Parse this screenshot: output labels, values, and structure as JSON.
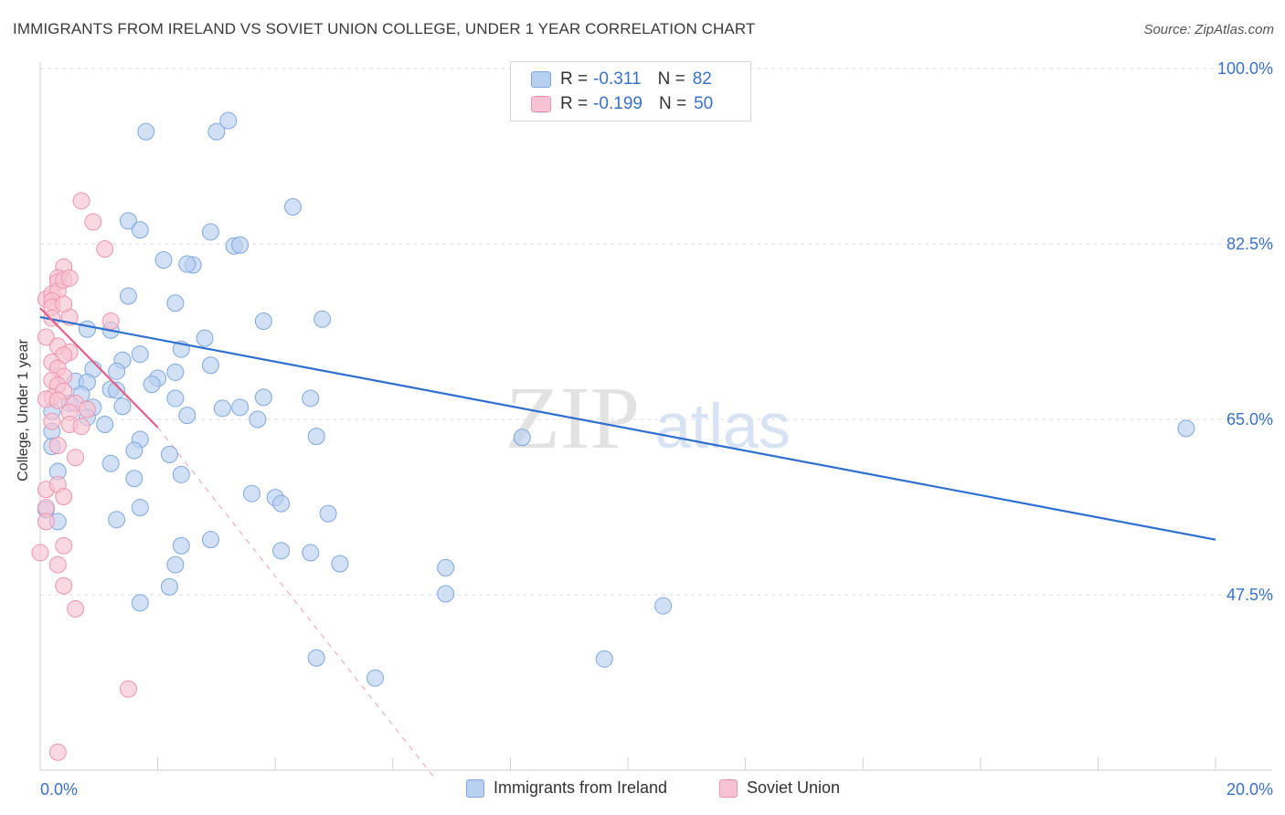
{
  "title": "IMMIGRANTS FROM IRELAND VS SOVIET UNION COLLEGE, UNDER 1 YEAR CORRELATION CHART",
  "source": "Source: ZipAtlas.com",
  "watermark": {
    "zip": "ZIP",
    "atlas": "atlas"
  },
  "legend": {
    "rows": [
      {
        "r_label": "R =",
        "r_value": "-0.311",
        "n_label": "N =",
        "n_value": "82"
      },
      {
        "r_label": "R =",
        "r_value": "-0.199",
        "n_label": "N =",
        "n_value": "50"
      }
    ]
  },
  "bottom_legend": {
    "ireland": "Immigrants from Ireland",
    "soviet": "Soviet Union"
  },
  "colors": {
    "blue_fill": "#b8d0f0",
    "blue_stroke": "#7fa8dc",
    "blue_line": "#2f6fd0",
    "pink_fill": "#f7c3d3",
    "pink_stroke": "#ec95b0",
    "pink_line": "#e0608a",
    "axis_label": "#3a72c8",
    "grid": "#dddddd"
  },
  "chart_data": {
    "type": "scatter",
    "title": "IMMIGRANTS FROM IRELAND VS SOVIET UNION COLLEGE, UNDER 1 YEAR CORRELATION CHART",
    "xlabel": "",
    "ylabel": "College, Under 1 year",
    "xlim": [
      0,
      20
    ],
    "ylim": [
      30,
      100
    ],
    "x_tick_labels": [
      "0.0%",
      "20.0%"
    ],
    "y_ticks": [
      47.5,
      65.0,
      82.5,
      100.0
    ],
    "y_tick_labels": [
      "47.5%",
      "65.0%",
      "82.5%",
      "100.0%"
    ],
    "grid": true,
    "series": [
      {
        "name": "Immigrants from Ireland",
        "color": "#b8d0f0",
        "points": [
          [
            1.8,
            93.7
          ],
          [
            3.2,
            94.8
          ],
          [
            3.0,
            93.7
          ],
          [
            4.3,
            86.2
          ],
          [
            1.5,
            84.8
          ],
          [
            1.7,
            83.9
          ],
          [
            2.9,
            83.7
          ],
          [
            3.3,
            82.3
          ],
          [
            3.4,
            82.4
          ],
          [
            2.1,
            80.9
          ],
          [
            2.6,
            80.4
          ],
          [
            2.5,
            80.5
          ],
          [
            1.5,
            77.3
          ],
          [
            2.3,
            76.6
          ],
          [
            4.8,
            75.0
          ],
          [
            3.8,
            74.8
          ],
          [
            0.8,
            74.0
          ],
          [
            1.2,
            73.9
          ],
          [
            2.8,
            73.1
          ],
          [
            2.4,
            72.0
          ],
          [
            1.7,
            71.5
          ],
          [
            1.4,
            70.9
          ],
          [
            2.9,
            70.4
          ],
          [
            2.3,
            69.7
          ],
          [
            0.9,
            70.0
          ],
          [
            1.3,
            69.8
          ],
          [
            2.0,
            69.1
          ],
          [
            1.9,
            68.5
          ],
          [
            0.6,
            68.8
          ],
          [
            0.8,
            68.7
          ],
          [
            1.2,
            68.0
          ],
          [
            0.7,
            67.5
          ],
          [
            1.3,
            67.9
          ],
          [
            2.3,
            67.1
          ],
          [
            3.8,
            67.2
          ],
          [
            4.6,
            67.1
          ],
          [
            0.5,
            66.6
          ],
          [
            0.9,
            66.2
          ],
          [
            1.4,
            66.3
          ],
          [
            3.1,
            66.1
          ],
          [
            3.4,
            66.2
          ],
          [
            0.2,
            65.8
          ],
          [
            2.5,
            65.4
          ],
          [
            3.7,
            65.0
          ],
          [
            0.8,
            65.2
          ],
          [
            1.1,
            64.5
          ],
          [
            0.2,
            63.8
          ],
          [
            4.7,
            63.3
          ],
          [
            1.7,
            63.0
          ],
          [
            0.2,
            62.3
          ],
          [
            1.6,
            61.9
          ],
          [
            2.2,
            61.5
          ],
          [
            1.2,
            60.6
          ],
          [
            0.3,
            59.8
          ],
          [
            2.4,
            59.5
          ],
          [
            1.6,
            59.1
          ],
          [
            8.2,
            63.2
          ],
          [
            3.6,
            57.6
          ],
          [
            1.3,
            55.0
          ],
          [
            0.3,
            54.8
          ],
          [
            1.7,
            56.2
          ],
          [
            4.0,
            57.2
          ],
          [
            0.1,
            56.0
          ],
          [
            4.9,
            55.6
          ],
          [
            2.9,
            53.0
          ],
          [
            2.4,
            52.4
          ],
          [
            4.1,
            51.9
          ],
          [
            4.6,
            51.7
          ],
          [
            4.1,
            56.6
          ],
          [
            2.3,
            50.5
          ],
          [
            5.1,
            50.6
          ],
          [
            6.9,
            50.2
          ],
          [
            2.2,
            48.3
          ],
          [
            6.9,
            47.6
          ],
          [
            1.7,
            46.7
          ],
          [
            10.6,
            46.4
          ],
          [
            19.5,
            64.1
          ],
          [
            9.6,
            41.1
          ],
          [
            4.7,
            41.2
          ],
          [
            5.7,
            39.2
          ],
          [
            1.5,
            27.0
          ],
          [
            3.8,
            24.0
          ]
        ]
      },
      {
        "name": "Soviet Union",
        "color": "#f7c3d3",
        "points": [
          [
            0.7,
            86.8
          ],
          [
            0.9,
            84.7
          ],
          [
            1.1,
            82.0
          ],
          [
            0.4,
            80.2
          ],
          [
            0.3,
            79.1
          ],
          [
            0.3,
            78.7
          ],
          [
            0.1,
            77.0
          ],
          [
            0.2,
            77.5
          ],
          [
            0.3,
            77.8
          ],
          [
            0.4,
            78.9
          ],
          [
            0.5,
            79.1
          ],
          [
            0.2,
            76.8
          ],
          [
            0.2,
            76.2
          ],
          [
            0.2,
            75.1
          ],
          [
            0.5,
            75.2
          ],
          [
            1.2,
            74.8
          ],
          [
            0.4,
            76.5
          ],
          [
            0.1,
            73.2
          ],
          [
            0.3,
            72.3
          ],
          [
            0.5,
            71.7
          ],
          [
            0.4,
            71.4
          ],
          [
            0.2,
            70.7
          ],
          [
            0.3,
            70.1
          ],
          [
            0.4,
            69.3
          ],
          [
            0.2,
            68.9
          ],
          [
            0.3,
            68.4
          ],
          [
            0.2,
            67.2
          ],
          [
            0.4,
            67.8
          ],
          [
            0.1,
            67.0
          ],
          [
            0.3,
            66.9
          ],
          [
            0.6,
            66.6
          ],
          [
            0.8,
            66.0
          ],
          [
            0.5,
            65.7
          ],
          [
            0.2,
            64.8
          ],
          [
            0.5,
            64.5
          ],
          [
            0.7,
            64.3
          ],
          [
            0.3,
            62.4
          ],
          [
            0.6,
            61.2
          ],
          [
            0.1,
            58.0
          ],
          [
            0.3,
            58.5
          ],
          [
            0.4,
            57.3
          ],
          [
            0.1,
            56.2
          ],
          [
            0.4,
            52.4
          ],
          [
            0.0,
            51.7
          ],
          [
            0.1,
            54.8
          ],
          [
            0.3,
            50.5
          ],
          [
            0.4,
            48.4
          ],
          [
            0.6,
            46.1
          ],
          [
            1.5,
            38.1
          ],
          [
            0.3,
            31.8
          ]
        ]
      }
    ],
    "trendlines": [
      {
        "series": "Immigrants from Ireland",
        "x": [
          0.0,
          20.0
        ],
        "y": [
          75.2,
          53.0
        ],
        "style": "solid"
      },
      {
        "series": "Soviet Union",
        "x": [
          0.0,
          2.0
        ],
        "y": [
          76.1,
          64.2
        ],
        "style": "solid"
      },
      {
        "series": "Soviet Union",
        "x": [
          2.0,
          6.7
        ],
        "y": [
          64.2,
          29.3
        ],
        "style": "dashed"
      }
    ]
  }
}
